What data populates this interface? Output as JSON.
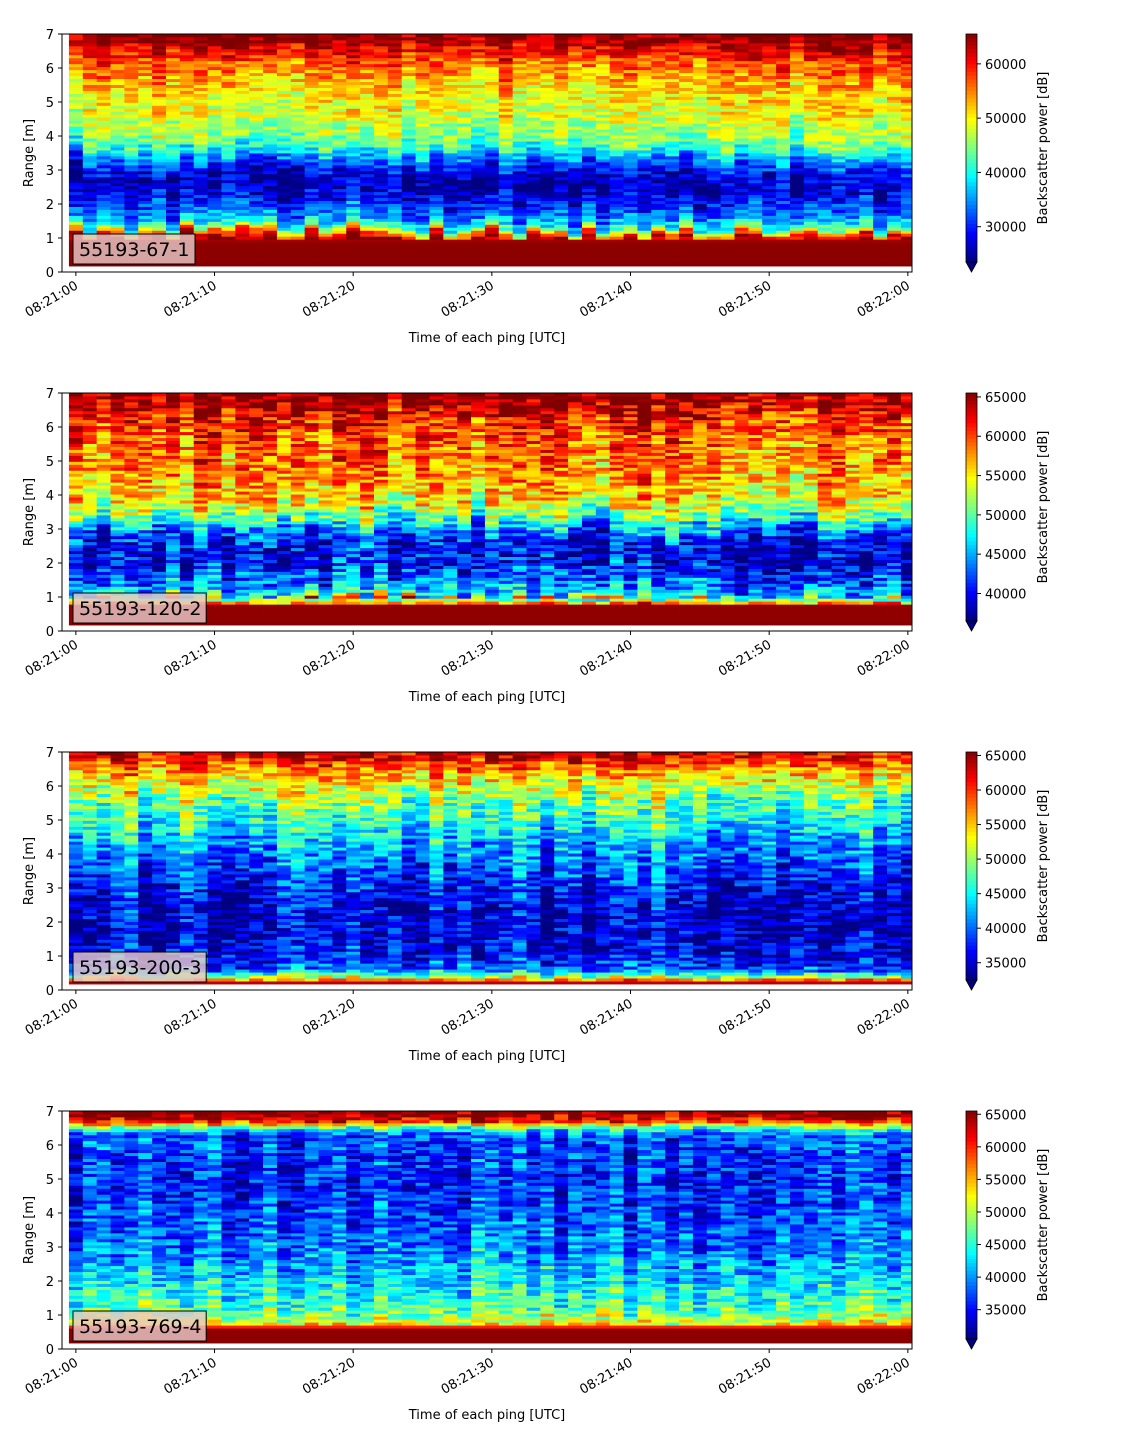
{
  "colormap": "jet",
  "chart_data": [
    {
      "type": "heatmap",
      "label": "55193-67-1",
      "xlabel": "Time of each ping [UTC]",
      "ylabel": "Range [m]",
      "xticks": [
        "08:21:00",
        "08:21:10",
        "08:21:20",
        "08:21:30",
        "08:21:40",
        "08:21:50",
        "08:22:00"
      ],
      "xlim_seconds": [
        -1,
        60.3
      ],
      "ylim": [
        0,
        7
      ],
      "yticks": [
        0,
        1,
        2,
        3,
        4,
        5,
        6,
        7
      ],
      "colorbar": {
        "label": "Backscatter power [dB]",
        "vmin": 23500,
        "vmax": 65500,
        "ticks": [
          30000,
          40000,
          50000,
          60000
        ],
        "extend": "min"
      },
      "profile": {
        "range_m": [
          0.2,
          0.25,
          0.9,
          1.1,
          1.3,
          1.6,
          2.0,
          2.5,
          3.0,
          3.4,
          3.8,
          4.5,
          5.5,
          6.2,
          6.6,
          6.9
        ],
        "value": [
          65500,
          65000,
          65000,
          58000,
          42000,
          35000,
          30000,
          26000,
          28000,
          36000,
          44000,
          48000,
          52000,
          57000,
          62000,
          65500
        ]
      }
    },
    {
      "type": "heatmap",
      "label": "55193-120-2",
      "xlabel": "Time of each ping [UTC]",
      "ylabel": "Range [m]",
      "xticks": [
        "08:21:00",
        "08:21:10",
        "08:21:20",
        "08:21:30",
        "08:21:40",
        "08:21:50",
        "08:22:00"
      ],
      "xlim_seconds": [
        -1,
        60.3
      ],
      "ylim": [
        0,
        7
      ],
      "yticks": [
        0,
        1,
        2,
        3,
        4,
        5,
        6,
        7
      ],
      "colorbar": {
        "label": "Backscatter power [dB]",
        "vmin": 36500,
        "vmax": 65500,
        "ticks": [
          40000,
          45000,
          50000,
          55000,
          60000,
          65000
        ],
        "extend": "min"
      },
      "profile": {
        "range_m": [
          0.2,
          0.25,
          0.75,
          0.9,
          1.1,
          1.5,
          2.0,
          2.5,
          3.0,
          3.5,
          4.0,
          4.8,
          5.5,
          6.2,
          6.6,
          6.9
        ],
        "value": [
          65500,
          65000,
          65000,
          52000,
          46000,
          43000,
          40000,
          39500,
          44000,
          52000,
          56000,
          58000,
          59000,
          61000,
          63500,
          65500
        ]
      }
    },
    {
      "type": "heatmap",
      "label": "55193-200-3",
      "xlabel": "Time of each ping [UTC]",
      "ylabel": "Range [m]",
      "xticks": [
        "08:21:00",
        "08:21:10",
        "08:21:20",
        "08:21:30",
        "08:21:40",
        "08:21:50",
        "08:22:00"
      ],
      "xlim_seconds": [
        -1,
        60.3
      ],
      "ylim": [
        0,
        7
      ],
      "yticks": [
        0,
        1,
        2,
        3,
        4,
        5,
        6,
        7
      ],
      "colorbar": {
        "label": "Backscatter power [dB]",
        "vmin": 32500,
        "vmax": 65500,
        "ticks": [
          35000,
          40000,
          45000,
          50000,
          55000,
          60000,
          65000
        ],
        "extend": "min"
      },
      "profile": {
        "range_m": [
          0.15,
          0.2,
          0.4,
          0.6,
          1.0,
          1.5,
          2.0,
          2.5,
          3.0,
          3.5,
          4.0,
          4.5,
          5.0,
          5.5,
          6.0,
          6.5,
          6.9
        ],
        "value": [
          62000,
          65000,
          50000,
          40000,
          37000,
          35500,
          35000,
          35500,
          37000,
          39000,
          41000,
          43000,
          46000,
          48500,
          52000,
          57000,
          63000
        ]
      }
    },
    {
      "type": "heatmap",
      "label": "55193-769-4",
      "xlabel": "Time of each ping [UTC]",
      "ylabel": "Range [m]",
      "xticks": [
        "08:21:00",
        "08:21:10",
        "08:21:20",
        "08:21:30",
        "08:21:40",
        "08:21:50",
        "08:22:00"
      ],
      "xlim_seconds": [
        -1,
        60.3
      ],
      "ylim": [
        0,
        7
      ],
      "yticks": [
        0,
        1,
        2,
        3,
        4,
        5,
        6,
        7
      ],
      "colorbar": {
        "label": "Backscatter power [dB]",
        "vmin": 30500,
        "vmax": 65500,
        "ticks": [
          35000,
          40000,
          45000,
          50000,
          55000,
          60000,
          65000
        ],
        "extend": "min"
      },
      "profile": {
        "range_m": [
          0.2,
          0.25,
          0.6,
          0.75,
          1.0,
          1.5,
          2.0,
          2.5,
          3.0,
          4.0,
          5.0,
          5.8,
          6.3,
          6.5,
          6.7,
          6.9
        ],
        "value": [
          65500,
          65000,
          65000,
          52000,
          48000,
          45000,
          43000,
          41000,
          39000,
          37000,
          36000,
          36500,
          38000,
          45000,
          60000,
          65500
        ]
      }
    }
  ]
}
